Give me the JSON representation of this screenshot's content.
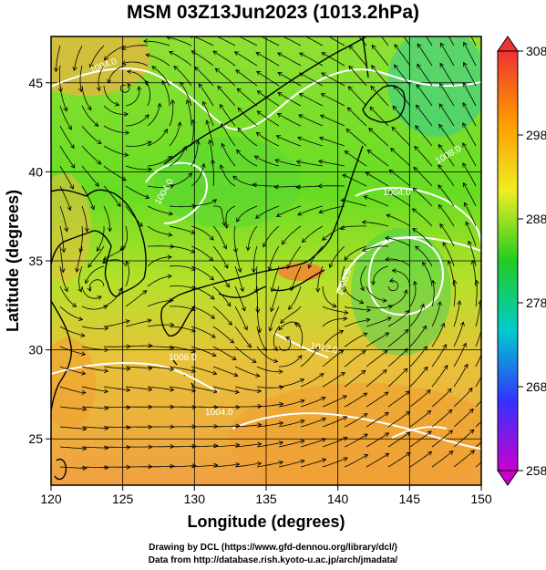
{
  "title": "MSM 03Z13Jun2023 (1013.2hPa)",
  "x_axis": {
    "label": "Longitude (degrees)",
    "ticks": [
      "120",
      "125",
      "130",
      "135",
      "140",
      "145",
      "150"
    ],
    "range": [
      120,
      150
    ]
  },
  "y_axis": {
    "label": "Latitude  (degrees)",
    "ticks": [
      "25",
      "30",
      "35",
      "40",
      "45"
    ],
    "range": [
      22.4,
      47.6
    ]
  },
  "colorbar": {
    "labels": [
      "308",
      "298",
      "288",
      "278",
      "268",
      "258"
    ],
    "range": [
      258,
      308
    ],
    "colors": [
      "#cc00cc",
      "#3333ff",
      "#00cccc",
      "#22cc22",
      "#eeee22",
      "#ff9900",
      "#ee3333"
    ]
  },
  "isobar_labels": [
    "1004.0",
    "1004.0",
    "1004.0",
    "1008.0",
    "1008.0",
    "1004.0",
    "1012.0",
    "1008.0"
  ],
  "credits": [
    "Drawing by DCL (https://www.gfd-dennou.org/library/dcl/)",
    "Data from http://database.rish.kyoto-u.ac.jp/arch/jmadata/"
  ]
}
